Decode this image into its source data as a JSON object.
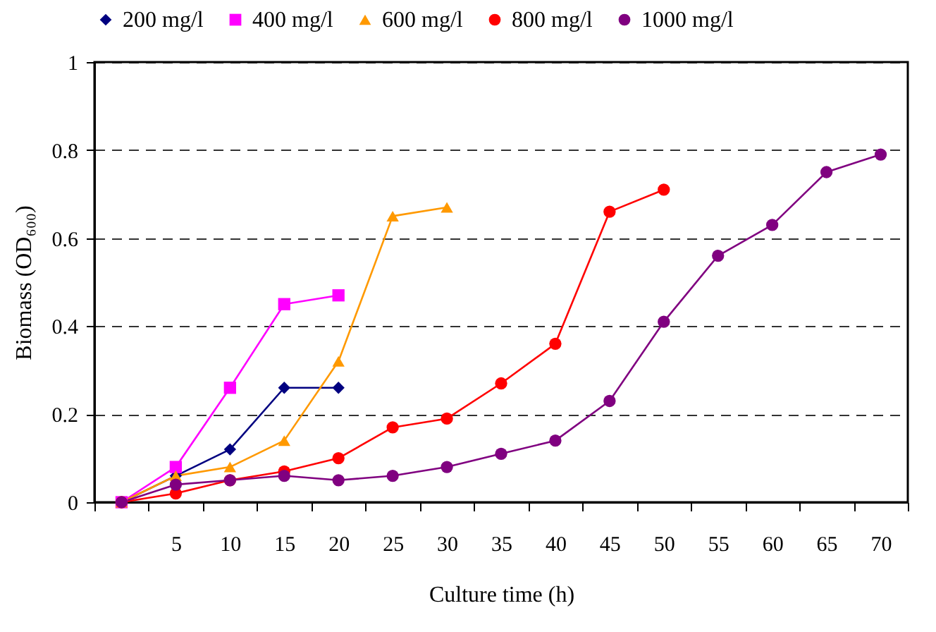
{
  "chart_data": {
    "type": "line",
    "xlabel": "Culture time (h)",
    "ylabel": "Biomass (OD₆₀₀)",
    "categories": [
      null,
      "5",
      "10",
      "15",
      "20",
      "25",
      "30",
      "35",
      "40",
      "45",
      "50",
      "55",
      "60",
      "65",
      "70"
    ],
    "ylim": [
      0,
      1
    ],
    "yticks": [
      0,
      0.2,
      0.4,
      0.6,
      0.8,
      1
    ],
    "grid": "y",
    "legend": "top",
    "series": [
      {
        "name": "200 mg/l",
        "color": "#000080",
        "marker": "diamond",
        "values": [
          0,
          0.06,
          0.12,
          0.26,
          0.26,
          null,
          null,
          null,
          null,
          null,
          null,
          null,
          null,
          null,
          null
        ]
      },
      {
        "name": "400 mg/l",
        "color": "#ff00ff",
        "marker": "square",
        "values": [
          0,
          0.08,
          0.26,
          0.45,
          0.47,
          null,
          null,
          null,
          null,
          null,
          null,
          null,
          null,
          null,
          null
        ]
      },
      {
        "name": "600 mg/l",
        "color": "#ff9900",
        "marker": "triangle",
        "values": [
          0,
          0.06,
          0.08,
          0.14,
          0.32,
          0.65,
          0.67,
          null,
          null,
          null,
          null,
          null,
          null,
          null,
          null
        ]
      },
      {
        "name": "800 mg/l",
        "color": "#ff0000",
        "marker": "circle",
        "values": [
          0,
          0.02,
          0.05,
          0.07,
          0.1,
          0.17,
          0.19,
          0.27,
          0.36,
          0.66,
          0.71,
          null,
          null,
          null,
          null
        ]
      },
      {
        "name": "1000 mg/l",
        "color": "#800080",
        "marker": "circle",
        "values": [
          0,
          0.04,
          0.05,
          0.06,
          0.05,
          0.06,
          0.08,
          0.11,
          0.14,
          0.23,
          0.41,
          0.56,
          0.63,
          0.75,
          0.79
        ]
      }
    ]
  }
}
